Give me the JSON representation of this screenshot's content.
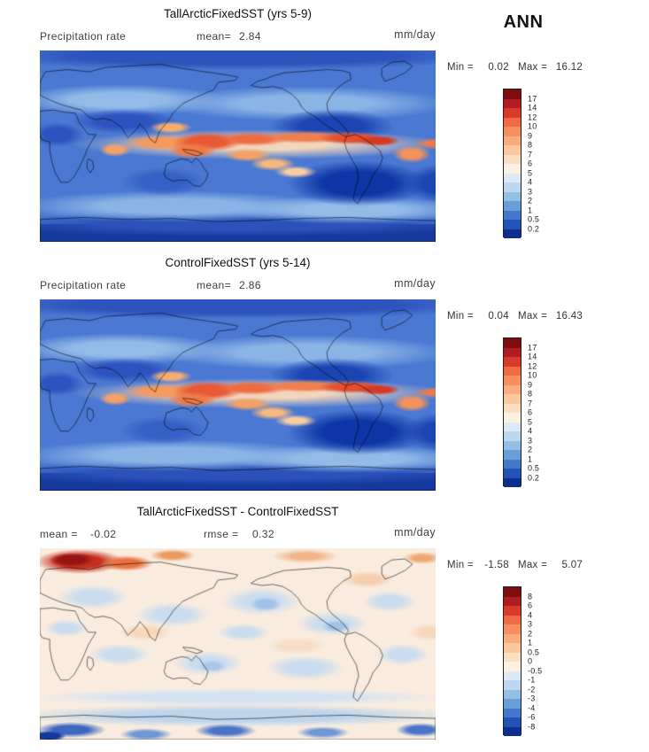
{
  "page": {
    "season": "ANN"
  },
  "chart_data": [
    {
      "type": "heatmap",
      "panel": "top",
      "title": "TallArcticFixedSST (yrs 5-9)",
      "variable": "Precipitation rate",
      "mean_label": "mean=",
      "mean": "2.84",
      "units": "mm/day",
      "min_label": "Min =",
      "min": "0.02",
      "max_label": "Max =",
      "max": "16.12",
      "colorbar": {
        "labels": [
          "17",
          "14",
          "12",
          "10",
          "9",
          "8",
          "7",
          "6",
          "5",
          "4",
          "3",
          "2",
          "1",
          "0.5",
          "0.2"
        ],
        "colors": [
          "#7f0d10",
          "#b01c20",
          "#d83b2a",
          "#ef6a45",
          "#f68e5e",
          "#f9ad7e",
          "#fbc89e",
          "#fcdfc2",
          "#fdf0e3",
          "#dce9f7",
          "#bcd7ef",
          "#94bfe5",
          "#699fd8",
          "#4379cb",
          "#2453b8",
          "#0e2f8e"
        ]
      }
    },
    {
      "type": "heatmap",
      "panel": "middle",
      "title": "ControlFixedSST (yrs 5-14)",
      "variable": "Precipitation rate",
      "mean_label": "mean=",
      "mean": "2.86",
      "units": "mm/day",
      "min_label": "Min =",
      "min": "0.04",
      "max_label": "Max =",
      "max": "16.43",
      "colorbar": {
        "labels": [
          "17",
          "14",
          "12",
          "10",
          "9",
          "8",
          "7",
          "6",
          "5",
          "4",
          "3",
          "2",
          "1",
          "0.5",
          "0.2"
        ],
        "colors": [
          "#7f0d10",
          "#b01c20",
          "#d83b2a",
          "#ef6a45",
          "#f68e5e",
          "#f9ad7e",
          "#fbc89e",
          "#fcdfc2",
          "#fdf0e3",
          "#dce9f7",
          "#bcd7ef",
          "#94bfe5",
          "#699fd8",
          "#4379cb",
          "#2453b8",
          "#0e2f8e"
        ]
      }
    },
    {
      "type": "heatmap",
      "panel": "bottom",
      "title": "TallArcticFixedSST - ControlFixedSST",
      "mean_label": "mean =",
      "mean": "-0.02",
      "rmse_label": "rmse =",
      "rmse": "0.32",
      "units": "mm/day",
      "min_label": "Min =",
      "min": "-1.58",
      "max_label": "Max =",
      "max": "5.07",
      "colorbar": {
        "labels": [
          "8",
          "6",
          "4",
          "3",
          "2",
          "1",
          "0.5",
          "0",
          "-0.5",
          "-1",
          "-2",
          "-3",
          "-4",
          "-6",
          "-8"
        ],
        "colors": [
          "#7f0d10",
          "#b01c20",
          "#d83b2a",
          "#ef6a45",
          "#f68e5e",
          "#f9ad7e",
          "#fbc89e",
          "#fcdfc2",
          "#fdf0e3",
          "#dce9f7",
          "#bcd7ef",
          "#94bfe5",
          "#699fd8",
          "#4379cb",
          "#2453b8",
          "#0e2f8e"
        ]
      }
    }
  ]
}
